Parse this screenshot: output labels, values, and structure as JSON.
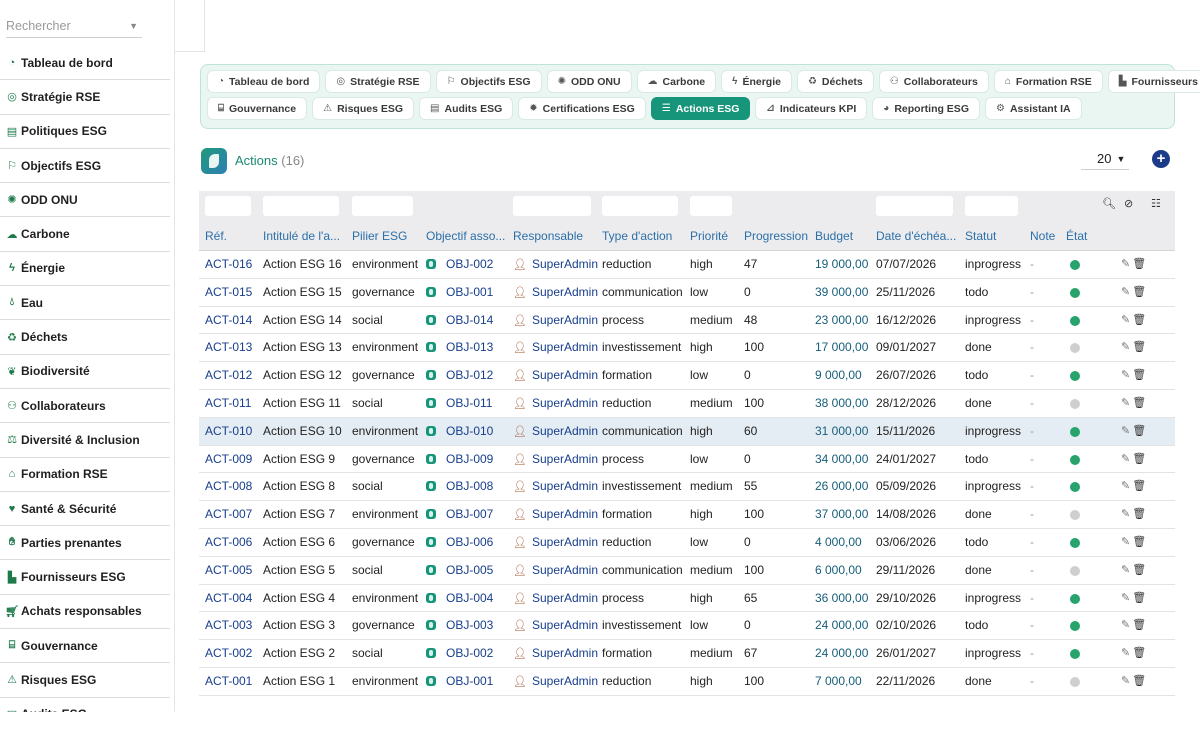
{
  "sidebar": {
    "search_placeholder": "Rechercher",
    "items": [
      {
        "label": "Tableau de bord",
        "icon": "gauge-icon"
      },
      {
        "label": "Stratégie RSE",
        "icon": "target-icon"
      },
      {
        "label": "Politiques ESG",
        "icon": "document-icon"
      },
      {
        "label": "Objectifs ESG",
        "icon": "flag-icon"
      },
      {
        "label": "ODD ONU",
        "icon": "globe-icon"
      },
      {
        "label": "Carbone",
        "icon": "cloud-icon"
      },
      {
        "label": "Énergie",
        "icon": "bolt-icon"
      },
      {
        "label": "Eau",
        "icon": "droplet-icon"
      },
      {
        "label": "Déchets",
        "icon": "recycle-icon"
      },
      {
        "label": "Biodiversité",
        "icon": "leaf-icon"
      },
      {
        "label": "Collaborateurs",
        "icon": "users-icon"
      },
      {
        "label": "Diversité & Inclusion",
        "icon": "scale-icon"
      },
      {
        "label": "Formation RSE",
        "icon": "graduation-cap-icon"
      },
      {
        "label": "Santé & Sécurité",
        "icon": "heart-icon"
      },
      {
        "label": "Parties prenantes",
        "icon": "handshake-icon"
      },
      {
        "label": "Fournisseurs ESG",
        "icon": "factory-icon"
      },
      {
        "label": "Achats responsables",
        "icon": "cart-icon"
      },
      {
        "label": "Gouvernance",
        "icon": "bank-icon"
      },
      {
        "label": "Risques ESG",
        "icon": "warning-icon"
      },
      {
        "label": "Audits ESG",
        "icon": "clipboard-icon"
      }
    ]
  },
  "tabs": {
    "row1": [
      {
        "label": "Tableau de bord",
        "icon": "gauge-icon",
        "glyph": "◔"
      },
      {
        "label": "Stratégie RSE",
        "icon": "target-icon",
        "glyph": "◎"
      },
      {
        "label": "Objectifs ESG",
        "icon": "flag-icon",
        "glyph": "⚐"
      },
      {
        "label": "ODD ONU",
        "icon": "globe-icon",
        "glyph": "✺"
      },
      {
        "label": "Carbone",
        "icon": "cloud-icon",
        "glyph": "☁"
      },
      {
        "label": "Énergie",
        "icon": "bolt-icon",
        "glyph": "ϟ"
      },
      {
        "label": "Déchets",
        "icon": "recycle-icon",
        "glyph": "♻"
      },
      {
        "label": "Collaborateurs",
        "icon": "users-icon",
        "glyph": "⚇"
      },
      {
        "label": "Formation RSE",
        "icon": "graduation-cap-icon",
        "glyph": "⌂"
      },
      {
        "label": "Fournisseurs ESG",
        "icon": "factory-icon",
        "glyph": "▙"
      }
    ],
    "row2": [
      {
        "label": "Gouvernance",
        "icon": "bank-icon",
        "glyph": "⌸"
      },
      {
        "label": "Risques ESG",
        "icon": "warning-icon",
        "glyph": "⚠"
      },
      {
        "label": "Audits ESG",
        "icon": "clipboard-icon",
        "glyph": "▤"
      },
      {
        "label": "Certifications ESG",
        "icon": "certificate-icon",
        "glyph": "✹"
      },
      {
        "label": "Actions ESG",
        "icon": "list-icon",
        "glyph": "☰",
        "active": true
      },
      {
        "label": "Indicateurs KPI",
        "icon": "chart-icon",
        "glyph": "⊿"
      },
      {
        "label": "Reporting ESG",
        "icon": "pie-icon",
        "glyph": "◕"
      },
      {
        "label": "Assistant IA",
        "icon": "robot-icon",
        "glyph": "⚙"
      }
    ]
  },
  "header": {
    "title": "Actions",
    "count": "(16)",
    "per_page": "20",
    "add_label": "+"
  },
  "columns": [
    "Réf.",
    "Intitulé de l'a...",
    "Pilier ESG",
    "Objectif asso...",
    "Responsable",
    "Type d'action",
    "Priorité",
    "Progression",
    "Budget",
    "Date d'échéa...",
    "Statut",
    "Note",
    "État"
  ],
  "colors": {
    "etat_active": "#27a36b",
    "etat_done": "#cfcfcf",
    "accent": "#17957a"
  },
  "rows": [
    {
      "ref": "ACT-016",
      "title": "Action ESG 16",
      "pillar": "environment",
      "objective": "OBJ-002",
      "owner": "SuperAdmin",
      "type": "reduction",
      "priority": "high",
      "progress": "47",
      "budget": "19 000,00",
      "due": "07/07/2026",
      "status": "inprogress",
      "note": "-",
      "etat": "active"
    },
    {
      "ref": "ACT-015",
      "title": "Action ESG 15",
      "pillar": "governance",
      "objective": "OBJ-001",
      "owner": "SuperAdmin",
      "type": "communication",
      "priority": "low",
      "progress": "0",
      "budget": "39 000,00",
      "due": "25/11/2026",
      "status": "todo",
      "note": "-",
      "etat": "active"
    },
    {
      "ref": "ACT-014",
      "title": "Action ESG 14",
      "pillar": "social",
      "objective": "OBJ-014",
      "owner": "SuperAdmin",
      "type": "process",
      "priority": "medium",
      "progress": "48",
      "budget": "23 000,00",
      "due": "16/12/2026",
      "status": "inprogress",
      "note": "-",
      "etat": "active"
    },
    {
      "ref": "ACT-013",
      "title": "Action ESG 13",
      "pillar": "environment",
      "objective": "OBJ-013",
      "owner": "SuperAdmin",
      "type": "investissement",
      "priority": "high",
      "progress": "100",
      "budget": "17 000,00",
      "due": "09/01/2027",
      "status": "done",
      "note": "-",
      "etat": "done"
    },
    {
      "ref": "ACT-012",
      "title": "Action ESG 12",
      "pillar": "governance",
      "objective": "OBJ-012",
      "owner": "SuperAdmin",
      "type": "formation",
      "priority": "low",
      "progress": "0",
      "budget": "9 000,00",
      "due": "26/07/2026",
      "status": "todo",
      "note": "-",
      "etat": "active"
    },
    {
      "ref": "ACT-011",
      "title": "Action ESG 11",
      "pillar": "social",
      "objective": "OBJ-011",
      "owner": "SuperAdmin",
      "type": "reduction",
      "priority": "medium",
      "progress": "100",
      "budget": "38 000,00",
      "due": "28/12/2026",
      "status": "done",
      "note": "-",
      "etat": "done"
    },
    {
      "ref": "ACT-010",
      "title": "Action ESG 10",
      "pillar": "environment",
      "objective": "OBJ-010",
      "owner": "SuperAdmin",
      "type": "communication",
      "priority": "high",
      "progress": "60",
      "budget": "31 000,00",
      "due": "15/11/2026",
      "status": "inprogress",
      "note": "-",
      "etat": "active",
      "highlight": true
    },
    {
      "ref": "ACT-009",
      "title": "Action ESG 9",
      "pillar": "governance",
      "objective": "OBJ-009",
      "owner": "SuperAdmin",
      "type": "process",
      "priority": "low",
      "progress": "0",
      "budget": "34 000,00",
      "due": "24/01/2027",
      "status": "todo",
      "note": "-",
      "etat": "active"
    },
    {
      "ref": "ACT-008",
      "title": "Action ESG 8",
      "pillar": "social",
      "objective": "OBJ-008",
      "owner": "SuperAdmin",
      "type": "investissement",
      "priority": "medium",
      "progress": "55",
      "budget": "26 000,00",
      "due": "05/09/2026",
      "status": "inprogress",
      "note": "-",
      "etat": "active"
    },
    {
      "ref": "ACT-007",
      "title": "Action ESG 7",
      "pillar": "environment",
      "objective": "OBJ-007",
      "owner": "SuperAdmin",
      "type": "formation",
      "priority": "high",
      "progress": "100",
      "budget": "37 000,00",
      "due": "14/08/2026",
      "status": "done",
      "note": "-",
      "etat": "done"
    },
    {
      "ref": "ACT-006",
      "title": "Action ESG 6",
      "pillar": "governance",
      "objective": "OBJ-006",
      "owner": "SuperAdmin",
      "type": "reduction",
      "priority": "low",
      "progress": "0",
      "budget": "4 000,00",
      "due": "03/06/2026",
      "status": "todo",
      "note": "-",
      "etat": "active"
    },
    {
      "ref": "ACT-005",
      "title": "Action ESG 5",
      "pillar": "social",
      "objective": "OBJ-005",
      "owner": "SuperAdmin",
      "type": "communication",
      "priority": "medium",
      "progress": "100",
      "budget": "6 000,00",
      "due": "29/11/2026",
      "status": "done",
      "note": "-",
      "etat": "done"
    },
    {
      "ref": "ACT-004",
      "title": "Action ESG 4",
      "pillar": "environment",
      "objective": "OBJ-004",
      "owner": "SuperAdmin",
      "type": "process",
      "priority": "high",
      "progress": "65",
      "budget": "36 000,00",
      "due": "29/10/2026",
      "status": "inprogress",
      "note": "-",
      "etat": "active"
    },
    {
      "ref": "ACT-003",
      "title": "Action ESG 3",
      "pillar": "governance",
      "objective": "OBJ-003",
      "owner": "SuperAdmin",
      "type": "investissement",
      "priority": "low",
      "progress": "0",
      "budget": "24 000,00",
      "due": "02/10/2026",
      "status": "todo",
      "note": "-",
      "etat": "active"
    },
    {
      "ref": "ACT-002",
      "title": "Action ESG 2",
      "pillar": "social",
      "objective": "OBJ-002",
      "owner": "SuperAdmin",
      "type": "formation",
      "priority": "medium",
      "progress": "67",
      "budget": "24 000,00",
      "due": "26/01/2027",
      "status": "inprogress",
      "note": "-",
      "etat": "active"
    },
    {
      "ref": "ACT-001",
      "title": "Action ESG 1",
      "pillar": "environment",
      "objective": "OBJ-001",
      "owner": "SuperAdmin",
      "type": "reduction",
      "priority": "high",
      "progress": "100",
      "budget": "7 000,00",
      "due": "22/11/2026",
      "status": "done",
      "note": "-",
      "etat": "done"
    }
  ]
}
